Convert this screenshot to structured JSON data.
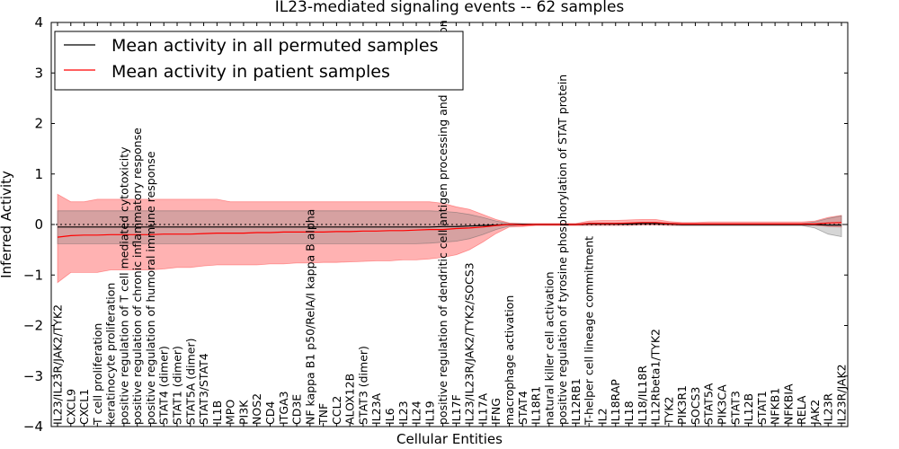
{
  "chart_data": {
    "type": "line",
    "title": "IL23-mediated signaling events -- 62 samples",
    "xlabel": "Cellular Entities",
    "ylabel": "Inferred Activity",
    "ylim": [
      -4,
      4
    ],
    "yticks": [
      -4,
      -3,
      -2,
      -1,
      0,
      1,
      2,
      3,
      4
    ],
    "legend_position": "top-left",
    "reference_line": 0,
    "categories": [
      "IL23/IL23R/JAK2/TYK2",
      "CXCL9",
      "CXCL1",
      "T cell proliferation",
      "keratinocyte proliferation",
      "positive regulation of T cell mediated cytotoxicity",
      "positive regulation of chronic inflammatory response",
      "positive regulation of humoral immune response",
      "STAT4 (dimer)",
      "STAT1 (dimer)",
      "STAT5A (dimer)",
      "STAT3/STAT4",
      "IL1B",
      "MPO",
      "PI3K",
      "NOS2",
      "CD4",
      "ITGA3",
      "CD3E",
      "NF kappa B1 p50/RelA/I kappa B alpha",
      "TNF",
      "CCL2",
      "ALOX12B",
      "STAT3 (dimer)",
      "IL23A",
      "IL6",
      "IL23",
      "IL24",
      "IL19",
      "positive regulation of dendritic cell antigen processing and presentation",
      "IL17F",
      "IL23/IL23R/JAK2/TYK2/SOCS3",
      "IL17A",
      "IFNG",
      "macrophage activation",
      "STAT4",
      "IL18R1",
      "natural killer cell activation",
      "positive regulation of tyrosine phosphorylation of STAT protein",
      "IL12RB1",
      "T-helper cell lineage commitment",
      "IL2",
      "IL18RAP",
      "IL18",
      "IL18/IL18R",
      "IL12Rbeta1/TYK2",
      "TYK2",
      "PIK3R1",
      "SOCS3",
      "STAT5A",
      "PIK3CA",
      "STAT3",
      "IL12B",
      "STAT1",
      "NFKB1",
      "NFKBIA",
      "RELA",
      "JAK2",
      "IL23R",
      "IL23R/JAK2"
    ],
    "series": [
      {
        "name": "Mean activity in all permuted samples",
        "color": "#000000",
        "values": [
          -0.05,
          -0.05,
          -0.05,
          -0.05,
          -0.05,
          -0.05,
          -0.05,
          -0.05,
          -0.05,
          -0.05,
          -0.05,
          -0.05,
          -0.05,
          -0.05,
          -0.05,
          -0.05,
          -0.05,
          -0.05,
          -0.05,
          -0.05,
          -0.05,
          -0.05,
          -0.05,
          -0.05,
          -0.05,
          -0.05,
          -0.05,
          -0.05,
          -0.05,
          -0.04,
          -0.04,
          -0.03,
          -0.02,
          -0.01,
          0.0,
          0.0,
          0.0,
          0.0,
          0.0,
          0.0,
          0.01,
          0.01,
          0.01,
          0.01,
          0.02,
          0.02,
          0.01,
          0.0,
          0.0,
          0.0,
          0.0,
          0.0,
          0.0,
          0.0,
          0.0,
          0.0,
          0.0,
          0.0,
          -0.01,
          -0.01
        ],
        "band": {
          "upper": [
            0.27,
            0.27,
            0.27,
            0.27,
            0.27,
            0.27,
            0.27,
            0.27,
            0.27,
            0.27,
            0.27,
            0.27,
            0.27,
            0.27,
            0.27,
            0.27,
            0.27,
            0.27,
            0.27,
            0.27,
            0.27,
            0.27,
            0.27,
            0.27,
            0.27,
            0.27,
            0.27,
            0.27,
            0.27,
            0.26,
            0.24,
            0.2,
            0.14,
            0.07,
            0.02,
            0.01,
            0.01,
            0.01,
            0.01,
            0.01,
            0.03,
            0.03,
            0.03,
            0.03,
            0.04,
            0.04,
            0.03,
            0.02,
            0.02,
            0.02,
            0.02,
            0.02,
            0.02,
            0.02,
            0.02,
            0.02,
            0.02,
            0.05,
            0.12,
            0.17
          ],
          "lower": [
            -0.38,
            -0.38,
            -0.38,
            -0.38,
            -0.38,
            -0.38,
            -0.38,
            -0.38,
            -0.38,
            -0.38,
            -0.38,
            -0.38,
            -0.38,
            -0.38,
            -0.38,
            -0.38,
            -0.38,
            -0.38,
            -0.38,
            -0.38,
            -0.38,
            -0.38,
            -0.38,
            -0.38,
            -0.38,
            -0.38,
            -0.38,
            -0.38,
            -0.37,
            -0.35,
            -0.33,
            -0.28,
            -0.2,
            -0.1,
            -0.03,
            -0.01,
            -0.01,
            -0.01,
            -0.01,
            -0.01,
            -0.01,
            -0.01,
            -0.01,
            -0.01,
            0.0,
            0.0,
            -0.01,
            -0.02,
            -0.02,
            -0.02,
            -0.02,
            -0.02,
            -0.02,
            -0.02,
            -0.02,
            -0.02,
            -0.02,
            -0.07,
            -0.19,
            -0.24
          ]
        }
      },
      {
        "name": "Mean activity in patient samples",
        "color": "#ff0000",
        "values": [
          -0.25,
          -0.22,
          -0.21,
          -0.21,
          -0.2,
          -0.2,
          -0.2,
          -0.2,
          -0.19,
          -0.19,
          -0.19,
          -0.18,
          -0.17,
          -0.17,
          -0.17,
          -0.16,
          -0.16,
          -0.15,
          -0.15,
          -0.15,
          -0.15,
          -0.14,
          -0.14,
          -0.13,
          -0.13,
          -0.12,
          -0.12,
          -0.11,
          -0.1,
          -0.1,
          -0.08,
          -0.07,
          -0.05,
          -0.02,
          0.0,
          -0.01,
          0.0,
          0.0,
          0.0,
          0.0,
          0.02,
          0.02,
          0.02,
          0.03,
          0.04,
          0.04,
          0.02,
          0.01,
          0.01,
          0.01,
          0.01,
          0.01,
          0.01,
          0.01,
          0.01,
          0.01,
          0.01,
          0.01,
          0.03,
          0.04
        ],
        "band": {
          "upper": [
            0.6,
            0.45,
            0.45,
            0.5,
            0.5,
            0.5,
            0.5,
            0.5,
            0.5,
            0.5,
            0.5,
            0.5,
            0.5,
            0.45,
            0.45,
            0.45,
            0.45,
            0.45,
            0.45,
            0.45,
            0.45,
            0.45,
            0.45,
            0.45,
            0.45,
            0.45,
            0.45,
            0.45,
            0.45,
            0.42,
            0.35,
            0.3,
            0.2,
            0.1,
            0.03,
            0.02,
            0.02,
            0.02,
            0.02,
            0.02,
            0.07,
            0.08,
            0.08,
            0.09,
            0.1,
            0.1,
            0.06,
            0.04,
            0.04,
            0.05,
            0.05,
            0.05,
            0.05,
            0.05,
            0.05,
            0.05,
            0.05,
            0.07,
            0.14,
            0.18
          ],
          "lower": [
            -1.15,
            -0.95,
            -0.95,
            -0.95,
            -0.9,
            -0.9,
            -0.9,
            -0.9,
            -0.88,
            -0.85,
            -0.85,
            -0.82,
            -0.8,
            -0.8,
            -0.8,
            -0.8,
            -0.78,
            -0.78,
            -0.76,
            -0.76,
            -0.75,
            -0.75,
            -0.74,
            -0.73,
            -0.72,
            -0.72,
            -0.7,
            -0.7,
            -0.68,
            -0.65,
            -0.6,
            -0.5,
            -0.35,
            -0.18,
            -0.05,
            -0.04,
            -0.02,
            -0.02,
            -0.02,
            -0.02,
            -0.02,
            -0.02,
            -0.02,
            -0.02,
            -0.01,
            -0.01,
            -0.02,
            -0.02,
            -0.02,
            -0.02,
            -0.02,
            -0.02,
            -0.02,
            -0.02,
            -0.02,
            -0.02,
            -0.02,
            -0.02,
            -0.04,
            -0.05
          ]
        }
      }
    ]
  }
}
